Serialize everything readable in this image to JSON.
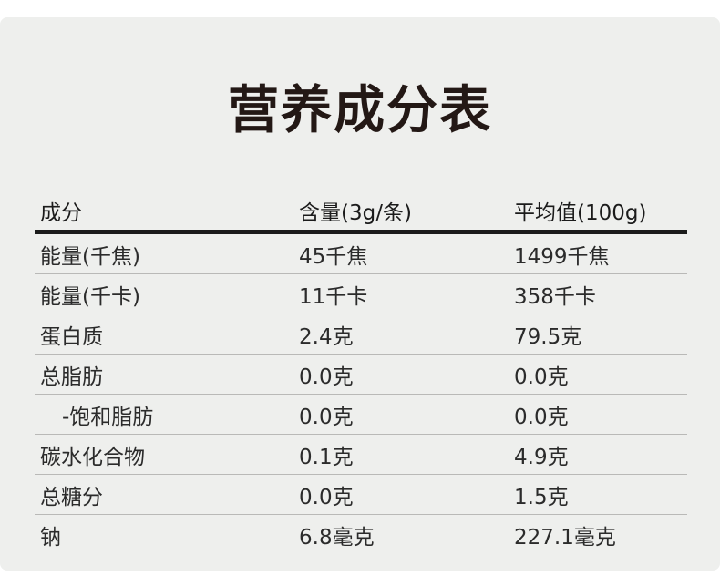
{
  "title": "营养成分表",
  "headers": {
    "name": "成分",
    "per_serving": "含量(3g/条)",
    "per_100g": "平均值(100g)"
  },
  "rows": [
    {
      "name": "能量(千焦)",
      "per_serving": "45千焦",
      "per_100g": "1499千焦"
    },
    {
      "name": "能量(千卡)",
      "per_serving": "11千卡",
      "per_100g": "358千卡"
    },
    {
      "name": "蛋白质",
      "per_serving": "2.4克",
      "per_100g": "79.5克"
    },
    {
      "name": "总脂肪",
      "per_serving": "0.0克",
      "per_100g": "0.0克"
    },
    {
      "name": "-饱和脂肪",
      "per_serving": "0.0克",
      "per_100g": "0.0克"
    },
    {
      "name": "碳水化合物",
      "per_serving": "0.1克",
      "per_100g": "4.9克"
    },
    {
      "name": "总糖分",
      "per_serving": "0.0克",
      "per_100g": "1.5克"
    },
    {
      "name": "钠",
      "per_serving": "6.8毫克",
      "per_100g": "227.1毫克"
    }
  ]
}
